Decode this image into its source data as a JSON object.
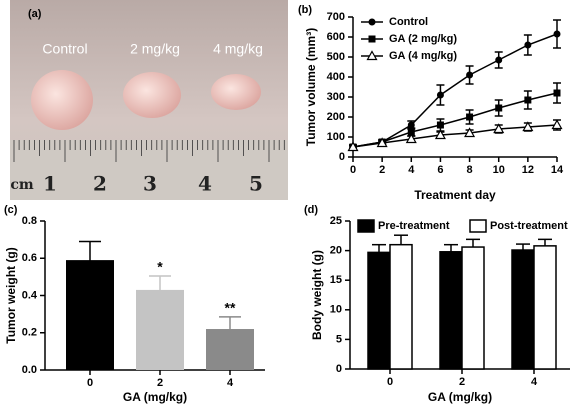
{
  "photo": {
    "panel": "(a)",
    "labels": [
      "Control",
      "2 mg/kg",
      "4 mg/kg"
    ],
    "ruler": [
      "cm",
      "1",
      "2",
      "3",
      "4",
      "5"
    ]
  },
  "chart_data": [
    {
      "type": "line",
      "panel": "(b)",
      "xlabel": "Treatment day",
      "ylabel": "Tumor volume (mm³)",
      "x": [
        0,
        2,
        4,
        6,
        8,
        10,
        12,
        14
      ],
      "xlim": [
        0,
        14
      ],
      "xticks": [
        0,
        2,
        4,
        6,
        8,
        10,
        12,
        14
      ],
      "ylim": [
        0,
        700
      ],
      "yticks": [
        0,
        100,
        200,
        300,
        400,
        500,
        600,
        700
      ],
      "legend": "upper left",
      "series": [
        {
          "name": "Control",
          "color": "#000000",
          "marker": "circle",
          "values": [
            50,
            75,
            160,
            310,
            410,
            485,
            560,
            615
          ],
          "errors": [
            10,
            10,
            20,
            50,
            45,
            40,
            50,
            70
          ]
        },
        {
          "name": "GA (2 mg/kg)",
          "color": "#000000",
          "marker": "square",
          "values": [
            50,
            75,
            125,
            160,
            200,
            245,
            285,
            320
          ],
          "errors": [
            10,
            10,
            20,
            30,
            35,
            40,
            45,
            50
          ]
        },
        {
          "name": "GA (4 mg/kg)",
          "color": "#000000",
          "marker": "triangle-open",
          "values": [
            50,
            70,
            90,
            110,
            120,
            140,
            150,
            160
          ],
          "errors": [
            5,
            8,
            15,
            15,
            15,
            20,
            20,
            25
          ]
        }
      ]
    },
    {
      "type": "bar",
      "panel": "(c)",
      "xlabel": "GA (mg/kg)",
      "ylabel": "Tumor weight (g)",
      "categories": [
        "0",
        "2",
        "4"
      ],
      "values": [
        0.59,
        0.43,
        0.22
      ],
      "errors": [
        0.1,
        0.075,
        0.065
      ],
      "colors": [
        "#000000",
        "#c4c4c4",
        "#8a8a8a"
      ],
      "significance": [
        null,
        "*",
        "**"
      ],
      "ylim": [
        0,
        0.8
      ],
      "yticks": [
        {
          "value": 0,
          "label": "0.0"
        },
        0.2,
        0.4,
        0.6,
        0.8
      ]
    },
    {
      "type": "grouped-bar",
      "panel": "(d)",
      "xlabel": "GA (mg/kg)",
      "ylabel": "Body weight (g)",
      "categories": [
        "0",
        "2",
        "4"
      ],
      "legend": "top",
      "ylim": [
        0,
        25
      ],
      "yticks": [
        0,
        5,
        10,
        15,
        20,
        25
      ],
      "series": [
        {
          "name": "Pre-treatment",
          "color": "#000000",
          "values": [
            19.7,
            19.8,
            20.1
          ],
          "errors": [
            1.3,
            1.2,
            1.0
          ]
        },
        {
          "name": "Post-treatment",
          "color": "#ffffff",
          "values": [
            21.0,
            20.6,
            20.8
          ],
          "errors": [
            1.6,
            1.3,
            1.1
          ]
        }
      ]
    }
  ]
}
